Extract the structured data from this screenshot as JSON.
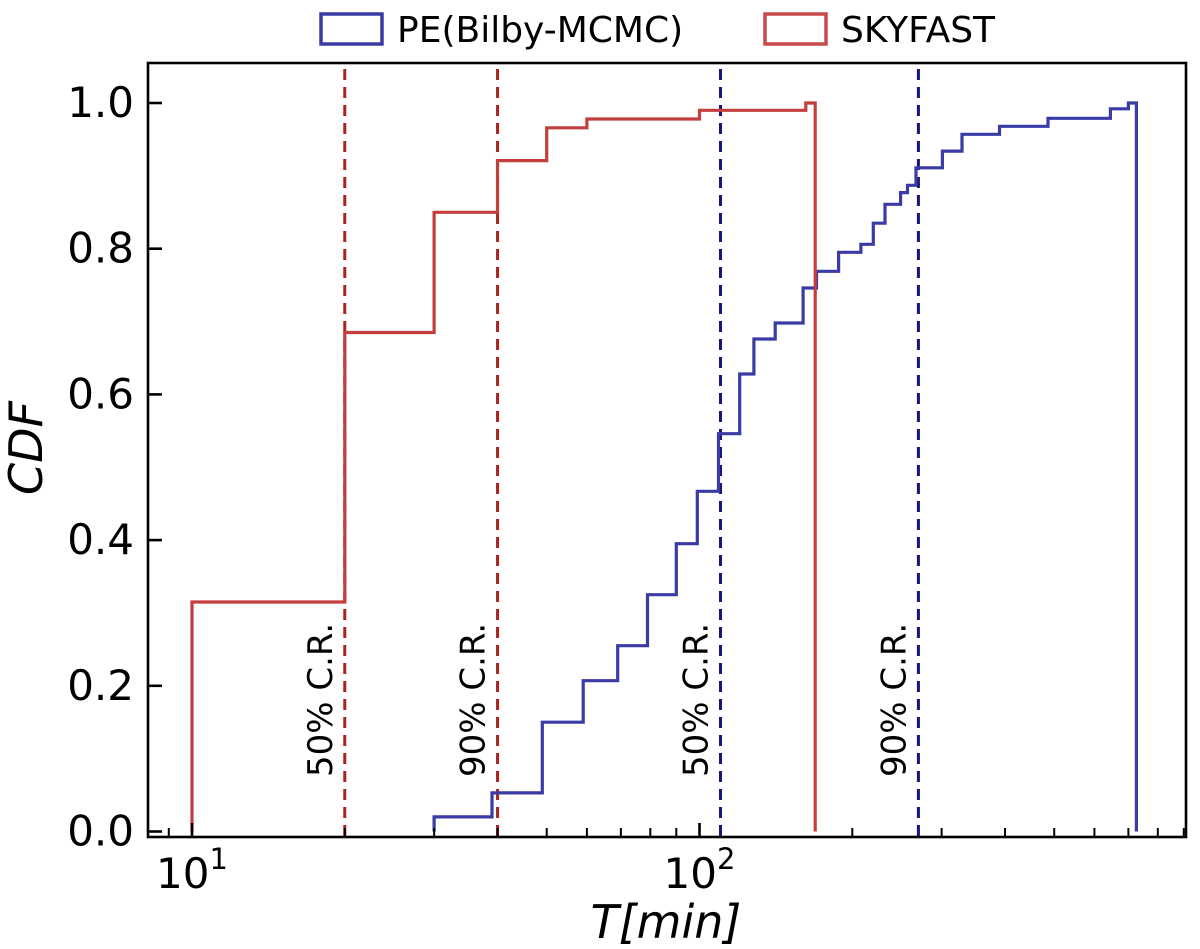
{
  "figure": {
    "background": "#ffffff",
    "frame_color": "#000000"
  },
  "legend": {
    "items": [
      {
        "label": "PE(Bilby-MCMC)",
        "color": "#3b3ba6"
      },
      {
        "label": "SKYFAST",
        "color": "#c8494b"
      }
    ]
  },
  "chart_data": {
    "type": "line",
    "subtype": "step-cdf-histogram",
    "title": "",
    "xlabel": "T[min]",
    "ylabel": "CDF",
    "x_scale": "log10",
    "xlim": [
      8.2,
      905
    ],
    "ylim": [
      -0.008,
      1.055
    ],
    "grid": false,
    "legend_position": "top-center-outside",
    "x_major_ticks": [
      10,
      100
    ],
    "x_major_tick_labels": [
      {
        "base": "10",
        "exp": "1"
      },
      {
        "base": "10",
        "exp": "2"
      }
    ],
    "x_minor_ticks": [
      9,
      20,
      30,
      40,
      50,
      60,
      70,
      80,
      90,
      200,
      300,
      400,
      500,
      600,
      700,
      800,
      900
    ],
    "y_major_ticks": [
      0.0,
      0.2,
      0.4,
      0.6,
      0.8,
      1.0
    ],
    "y_major_tick_labels": [
      "0.0",
      "0.2",
      "0.4",
      "0.6",
      "0.8",
      "1.0"
    ],
    "series": [
      {
        "name": "PE(Bilby-MCMC)",
        "color": "#3b3ba6",
        "line_style": "solid",
        "line_width": 3.2,
        "steps_format": "[T_min_at_rise, CDF_after_rise]",
        "steps": [
          [
            30,
            0.02
          ],
          [
            39,
            0.053
          ],
          [
            49,
            0.15
          ],
          [
            59,
            0.207
          ],
          [
            69,
            0.255
          ],
          [
            79,
            0.325
          ],
          [
            90,
            0.395
          ],
          [
            99,
            0.467
          ],
          [
            109,
            0.546
          ],
          [
            120,
            0.628
          ],
          [
            128,
            0.676
          ],
          [
            141,
            0.698
          ],
          [
            160,
            0.746
          ],
          [
            170,
            0.769
          ],
          [
            188,
            0.795
          ],
          [
            208,
            0.806
          ],
          [
            220,
            0.835
          ],
          [
            232,
            0.861
          ],
          [
            249,
            0.877
          ],
          [
            257,
            0.887
          ],
          [
            267,
            0.911
          ],
          [
            301,
            0.934
          ],
          [
            329,
            0.957
          ],
          [
            390,
            0.968
          ],
          [
            486,
            0.979
          ],
          [
            645,
            0.992
          ],
          [
            700,
            1.0
          ]
        ],
        "end_x": 726
      },
      {
        "name": "SKYFAST",
        "color": "#c43e3e",
        "line_style": "solid",
        "line_width": 3.2,
        "steps_format": "[T_min_at_rise, CDF_after_rise]",
        "steps": [
          [
            10,
            0.315
          ],
          [
            20,
            0.685
          ],
          [
            30,
            0.85
          ],
          [
            40,
            0.921
          ],
          [
            50,
            0.966
          ],
          [
            60,
            0.978
          ],
          [
            100,
            0.99
          ],
          [
            162,
            1.0
          ]
        ],
        "end_x": 169
      }
    ],
    "vlines": [
      {
        "label": "50% C.R.",
        "x": 20,
        "color": "#aa2222",
        "series": "SKYFAST",
        "style": "dashed"
      },
      {
        "label": "90% C.R.",
        "x": 40,
        "color": "#aa2222",
        "series": "SKYFAST",
        "style": "dashed"
      },
      {
        "label": "50% C.R.",
        "x": 110,
        "color": "#15157e",
        "series": "PE(Bilby-MCMC)",
        "style": "dashed"
      },
      {
        "label": "90% C.R.",
        "x": 270,
        "color": "#15157e",
        "series": "PE(Bilby-MCMC)",
        "style": "dashed"
      }
    ]
  }
}
